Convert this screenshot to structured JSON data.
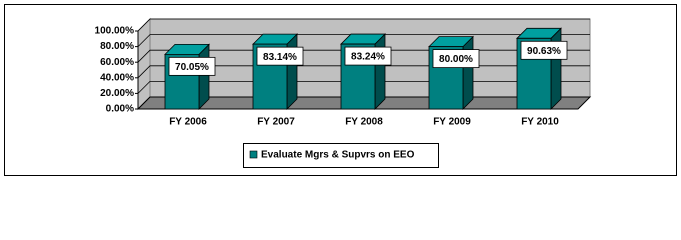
{
  "chart_data": {
    "type": "bar3d",
    "categories": [
      "FY 2006",
      "FY 2007",
      "FY 2008",
      "FY 2009",
      "FY 2010"
    ],
    "series": [
      {
        "name": "Evaluate Mgrs & Supvrs on EEO",
        "color": "#008080",
        "values": [
          70.05,
          83.14,
          83.24,
          80.0,
          90.63
        ],
        "value_labels": [
          "70.05%",
          "83.14%",
          "83.24%",
          "80.00%",
          "90.63%"
        ]
      }
    ],
    "ylim": [
      0,
      100
    ],
    "yticks": [
      {
        "value": 0,
        "label": "0.00%"
      },
      {
        "value": 20,
        "label": "20.00%"
      },
      {
        "value": 40,
        "label": "40.00%"
      },
      {
        "value": 60,
        "label": "60.00%"
      },
      {
        "value": 80,
        "label": "80.00%"
      },
      {
        "value": 100,
        "label": "100.00%"
      }
    ],
    "grid": true
  }
}
